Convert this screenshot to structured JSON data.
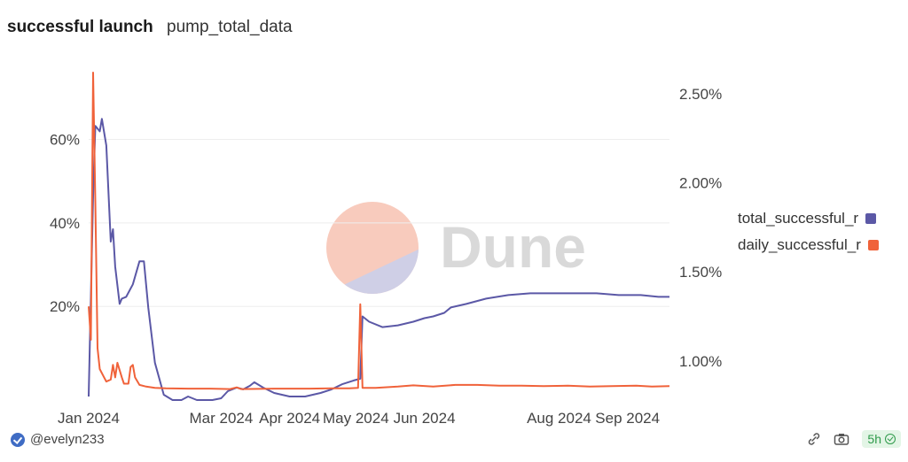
{
  "header": {
    "title": "successful launch",
    "subtitle": "pump_total_data"
  },
  "watermark": {
    "text": "Dune"
  },
  "footer": {
    "user": "@evelyn233",
    "age": "5h"
  },
  "icons": {
    "user": "verified-check-icon",
    "link": "link-icon",
    "camera": "camera-icon",
    "status": "check-circle-icon"
  },
  "colors": {
    "total": "#5b58a6",
    "daily": "#f0623a",
    "watermark_top": "#f8cbbd",
    "watermark_bottom": "#cfcfe6"
  },
  "chart_data": {
    "type": "line",
    "x_ticks": [
      "Jan 2024",
      "Mar 2024",
      "Apr 2024",
      "May 2024",
      "Jun 2024",
      "Aug 2024",
      "Sep 2024"
    ],
    "y_left_ticks": [
      "20%",
      "40%",
      "60%"
    ],
    "y_right_ticks": [
      "1.00%",
      "1.50%",
      "2.00%",
      "2.50%"
    ],
    "y_left_range": [
      -0.02,
      0.76
    ],
    "y_right_range": [
      0.0079,
      0.0262
    ],
    "x_range": [
      "2024-01-01",
      "2024-09-20"
    ],
    "grid": true,
    "legend_position": "right",
    "series": [
      {
        "name": "total_successful_r",
        "axis": "right",
        "points": [
          [
            "2024-01-01",
            0.008
          ],
          [
            "2024-01-03",
            0.0193
          ],
          [
            "2024-01-04",
            0.0232
          ],
          [
            "2024-01-06",
            0.0229
          ],
          [
            "2024-01-07",
            0.0236
          ],
          [
            "2024-01-09",
            0.0221
          ],
          [
            "2024-01-11",
            0.0167
          ],
          [
            "2024-01-12",
            0.0174
          ],
          [
            "2024-01-13",
            0.0153
          ],
          [
            "2024-01-15",
            0.0132
          ],
          [
            "2024-01-16",
            0.0135
          ],
          [
            "2024-01-18",
            0.0136
          ],
          [
            "2024-01-21",
            0.0143
          ],
          [
            "2024-01-24",
            0.0156
          ],
          [
            "2024-01-26",
            0.0156
          ],
          [
            "2024-01-28",
            0.013
          ],
          [
            "2024-01-31",
            0.0099
          ],
          [
            "2024-02-04",
            0.0081
          ],
          [
            "2024-02-08",
            0.0077
          ],
          [
            "2024-02-12",
            0.0077
          ],
          [
            "2024-02-15",
            0.008
          ],
          [
            "2024-02-19",
            0.0077
          ],
          [
            "2024-02-22",
            0.0076
          ],
          [
            "2024-02-26",
            0.0077
          ],
          [
            "2024-03-01",
            0.0079
          ],
          [
            "2024-03-04",
            0.0083
          ],
          [
            "2024-03-08",
            0.0085
          ],
          [
            "2024-03-11",
            0.0084
          ],
          [
            "2024-03-14",
            0.0086
          ],
          [
            "2024-03-16",
            0.0088
          ],
          [
            "2024-03-20",
            0.0085
          ],
          [
            "2024-03-25",
            0.0082
          ],
          [
            "2024-04-01",
            0.008
          ],
          [
            "2024-04-08",
            0.008
          ],
          [
            "2024-04-15",
            0.0082
          ],
          [
            "2024-04-20",
            0.0084
          ],
          [
            "2024-04-25",
            0.0087
          ],
          [
            "2024-04-30",
            0.0089
          ],
          [
            "2024-05-03",
            0.009
          ],
          [
            "2024-05-04",
            0.0125
          ],
          [
            "2024-05-07",
            0.0122
          ],
          [
            "2024-05-13",
            0.0119
          ],
          [
            "2024-05-20",
            0.012
          ],
          [
            "2024-05-27",
            0.0122
          ],
          [
            "2024-06-01",
            0.0124
          ],
          [
            "2024-06-05",
            0.0125
          ],
          [
            "2024-06-10",
            0.0127
          ],
          [
            "2024-06-13",
            0.013
          ],
          [
            "2024-06-20",
            0.0132
          ],
          [
            "2024-06-29",
            0.0135
          ],
          [
            "2024-07-09",
            0.0137
          ],
          [
            "2024-07-19",
            0.0138
          ],
          [
            "2024-07-29",
            0.0138
          ],
          [
            "2024-08-08",
            0.0138
          ],
          [
            "2024-08-18",
            0.0138
          ],
          [
            "2024-08-28",
            0.0137
          ],
          [
            "2024-09-07",
            0.0137
          ],
          [
            "2024-09-15",
            0.0136
          ],
          [
            "2024-09-20",
            0.0136
          ]
        ]
      },
      {
        "name": "daily_successful_r",
        "axis": "left",
        "points": [
          [
            "2024-01-01",
            0.2
          ],
          [
            "2024-01-02",
            0.12
          ],
          [
            "2024-01-03",
            0.76
          ],
          [
            "2024-01-04",
            0.45
          ],
          [
            "2024-01-05",
            0.1
          ],
          [
            "2024-01-06",
            0.05
          ],
          [
            "2024-01-08",
            0.03
          ],
          [
            "2024-01-09",
            0.02
          ],
          [
            "2024-01-11",
            0.025
          ],
          [
            "2024-01-12",
            0.06
          ],
          [
            "2024-01-13",
            0.03
          ],
          [
            "2024-01-14",
            0.065
          ],
          [
            "2024-01-16",
            0.03
          ],
          [
            "2024-01-17",
            0.015
          ],
          [
            "2024-01-19",
            0.015
          ],
          [
            "2024-01-20",
            0.055
          ],
          [
            "2024-01-21",
            0.06
          ],
          [
            "2024-01-22",
            0.03
          ],
          [
            "2024-01-24",
            0.012
          ],
          [
            "2024-01-27",
            0.008
          ],
          [
            "2024-01-31",
            0.005
          ],
          [
            "2024-02-05",
            0.004
          ],
          [
            "2024-02-15",
            0.003
          ],
          [
            "2024-02-25",
            0.003
          ],
          [
            "2024-03-05",
            0.002
          ],
          [
            "2024-03-08",
            0.006
          ],
          [
            "2024-03-10",
            0.002
          ],
          [
            "2024-03-25",
            0.003
          ],
          [
            "2024-04-10",
            0.003
          ],
          [
            "2024-04-20",
            0.004
          ],
          [
            "2024-04-28",
            0.004
          ],
          [
            "2024-05-02",
            0.005
          ],
          [
            "2024-05-03",
            0.205
          ],
          [
            "2024-05-04",
            0.005
          ],
          [
            "2024-05-10",
            0.005
          ],
          [
            "2024-05-20",
            0.008
          ],
          [
            "2024-05-27",
            0.011
          ],
          [
            "2024-06-05",
            0.008
          ],
          [
            "2024-06-15",
            0.012
          ],
          [
            "2024-06-25",
            0.012
          ],
          [
            "2024-07-05",
            0.01
          ],
          [
            "2024-07-15",
            0.01
          ],
          [
            "2024-07-25",
            0.009
          ],
          [
            "2024-08-05",
            0.01
          ],
          [
            "2024-08-15",
            0.008
          ],
          [
            "2024-08-25",
            0.009
          ],
          [
            "2024-09-05",
            0.01
          ],
          [
            "2024-09-12",
            0.008
          ],
          [
            "2024-09-20",
            0.009
          ]
        ]
      }
    ]
  }
}
